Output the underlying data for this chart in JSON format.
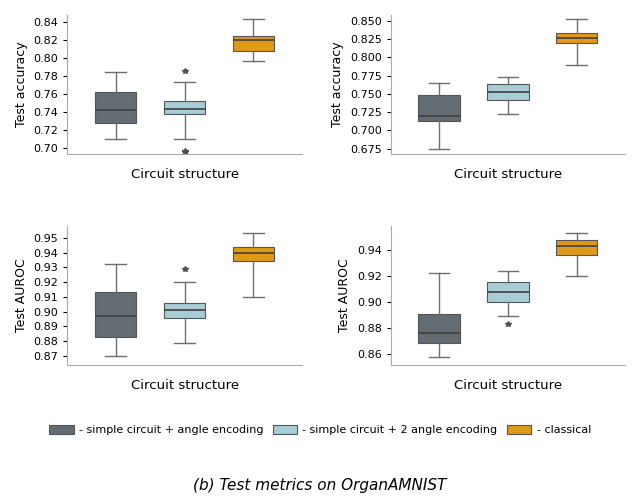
{
  "title": "(b) Test metrics on OrganAMNIST",
  "colors": {
    "dark_gray": "#636c72",
    "light_blue": "#a8cdd6",
    "orange": "#e09818"
  },
  "ylabels": [
    "Test accuracy",
    "Test accuracy",
    "Test AUROC",
    "Test AUROC"
  ],
  "xlabel": "Circuit structure",
  "plots": [
    {
      "name": "top_left_accuracy",
      "ylim": [
        0.693,
        0.848
      ],
      "yticks": [
        0.7,
        0.72,
        0.74,
        0.76,
        0.78,
        0.8,
        0.82,
        0.84
      ],
      "ytick_labels": [
        "0.70",
        "0.72",
        "0.74",
        "0.76",
        "0.78",
        "0.80",
        "0.82",
        "0.84"
      ],
      "boxes": [
        {
          "q1": 0.727,
          "median": 0.742,
          "q3": 0.762,
          "whislo": 0.71,
          "whishi": 0.784,
          "fliers": []
        },
        {
          "q1": 0.737,
          "median": 0.743,
          "q3": 0.752,
          "whislo": 0.71,
          "whishi": 0.773,
          "fliers": [
            0.695,
            0.696,
            0.785
          ]
        },
        {
          "q1": 0.808,
          "median": 0.82,
          "q3": 0.825,
          "whislo": 0.797,
          "whishi": 0.843,
          "fliers": []
        }
      ]
    },
    {
      "name": "top_right_accuracy",
      "ylim": [
        0.668,
        0.858
      ],
      "yticks": [
        0.675,
        0.7,
        0.725,
        0.75,
        0.775,
        0.8,
        0.825,
        0.85
      ],
      "ytick_labels": [
        "0.675",
        "0.700",
        "0.725",
        "0.750",
        "0.775",
        "0.800",
        "0.825",
        "0.850"
      ],
      "boxes": [
        {
          "q1": 0.713,
          "median": 0.72,
          "q3": 0.748,
          "whislo": 0.675,
          "whishi": 0.765,
          "fliers": []
        },
        {
          "q1": 0.742,
          "median": 0.752,
          "q3": 0.763,
          "whislo": 0.722,
          "whishi": 0.773,
          "fliers": []
        },
        {
          "q1": 0.82,
          "median": 0.827,
          "q3": 0.834,
          "whislo": 0.79,
          "whishi": 0.852,
          "fliers": []
        }
      ]
    },
    {
      "name": "bottom_left_auroc",
      "ylim": [
        0.864,
        0.958
      ],
      "yticks": [
        0.87,
        0.88,
        0.89,
        0.9,
        0.91,
        0.92,
        0.93,
        0.94,
        0.95
      ],
      "ytick_labels": [
        "0.87",
        "0.88",
        "0.89",
        "0.90",
        "0.91",
        "0.92",
        "0.93",
        "0.94",
        "0.95"
      ],
      "boxes": [
        {
          "q1": 0.883,
          "median": 0.897,
          "q3": 0.913,
          "whislo": 0.87,
          "whishi": 0.932,
          "fliers": []
        },
        {
          "q1": 0.896,
          "median": 0.901,
          "q3": 0.906,
          "whislo": 0.879,
          "whishi": 0.92,
          "fliers": [
            0.929
          ]
        },
        {
          "q1": 0.934,
          "median": 0.94,
          "q3": 0.944,
          "whislo": 0.91,
          "whishi": 0.953,
          "fliers": []
        }
      ]
    },
    {
      "name": "bottom_right_auroc",
      "ylim": [
        0.852,
        0.958
      ],
      "yticks": [
        0.86,
        0.88,
        0.9,
        0.92,
        0.94
      ],
      "ytick_labels": [
        "0.86",
        "0.88",
        "0.90",
        "0.92",
        "0.94"
      ],
      "boxes": [
        {
          "q1": 0.869,
          "median": 0.876,
          "q3": 0.891,
          "whislo": 0.858,
          "whishi": 0.922,
          "fliers": []
        },
        {
          "q1": 0.9,
          "median": 0.908,
          "q3": 0.915,
          "whislo": 0.889,
          "whishi": 0.924,
          "fliers": [
            0.883
          ]
        },
        {
          "q1": 0.936,
          "median": 0.943,
          "q3": 0.947,
          "whislo": 0.92,
          "whishi": 0.953,
          "fliers": []
        }
      ]
    }
  ],
  "legend_labels": [
    "- simple circuit + angle encoding",
    "- simple circuit + 2 angle encoding",
    "- classical"
  ]
}
